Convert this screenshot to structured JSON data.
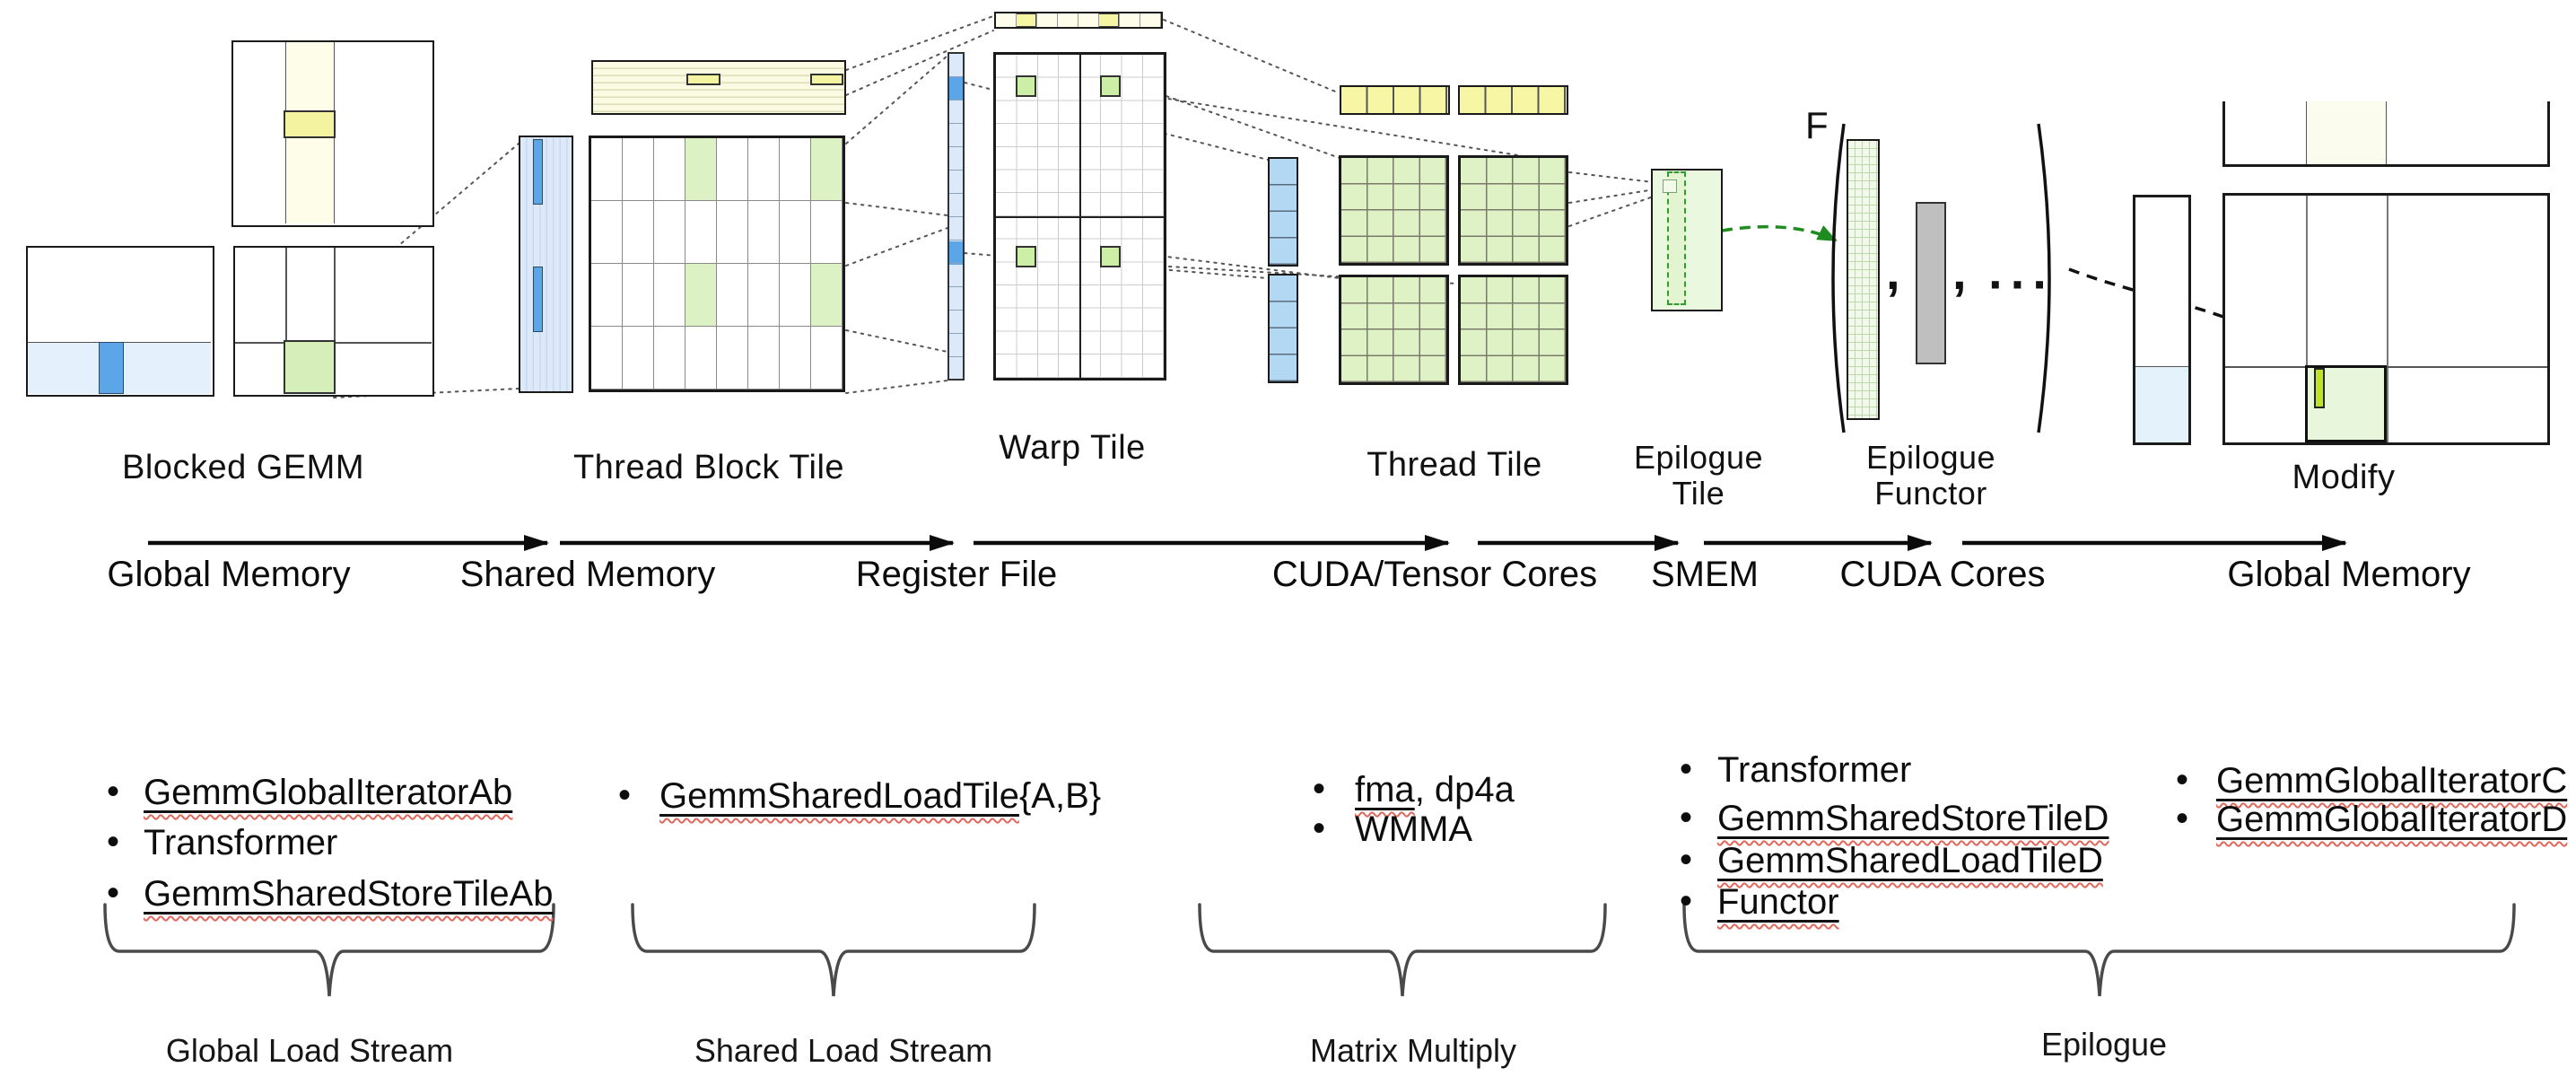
{
  "tiles": {
    "blocked_gemm": "Blocked GEMM",
    "thread_block_tile": "Thread Block Tile",
    "warp_tile": "Warp Tile",
    "thread_tile": "Thread Tile",
    "epilogue_tile": [
      "Epilogue",
      "Tile"
    ],
    "epilogue_functor": [
      "Epilogue",
      "Functor"
    ],
    "modify": "Modify"
  },
  "functor": {
    "symbol": "F",
    "comma": ",",
    "ellipsis": "···"
  },
  "pipeline": {
    "stages": [
      "Global Memory",
      "Shared Memory",
      "Register File",
      "CUDA/Tensor Cores",
      "SMEM",
      "CUDA Cores",
      "Global Memory"
    ]
  },
  "component_lists": [
    {
      "items": [
        [
          {
            "t": "GemmGlobalIteratorAb",
            "u": true
          }
        ],
        [
          {
            "t": "Transformer",
            "u": false
          }
        ],
        [
          {
            "t": "GemmSharedStoreTileAb",
            "u": true
          }
        ]
      ]
    },
    {
      "items": [
        [
          {
            "t": "GemmSharedLoadTile",
            "u": true
          },
          {
            "t": "{A,B}",
            "u": false
          }
        ]
      ]
    },
    {
      "items": [
        [
          {
            "t": "fma",
            "u": true
          },
          {
            "t": ", dp4a",
            "u": false
          }
        ],
        [
          {
            "t": "WMMA",
            "u": false
          }
        ]
      ]
    },
    {
      "items": [
        [
          {
            "t": "Transformer",
            "u": false
          }
        ],
        [
          {
            "t": "GemmSharedStoreTileD",
            "u": true
          }
        ],
        [
          {
            "t": "GemmSharedLoadTileD",
            "u": true
          }
        ],
        [
          {
            "t": "Functor",
            "u": true
          }
        ]
      ]
    },
    {
      "items": [
        [
          {
            "t": "GemmGlobalIteratorC",
            "u": true
          }
        ],
        [
          {
            "t": "GemmGlobalIteratorD",
            "u": true
          }
        ]
      ]
    }
  ],
  "phases": [
    "Global Load Stream",
    "Shared Load Stream",
    "Matrix Multiply",
    "Epilogue"
  ],
  "colors": {
    "yellow_highlight": "#F4F4A0",
    "light_yellow_band": "#FBFBE4",
    "blue_highlight": "#5CA6E7",
    "light_blue": "#DDE9F8",
    "register_blue": "#B3D8F3",
    "green_tile": "#DCF2C4",
    "thread_green": "#DFF2C6",
    "epilogue_green": "#E2F5D0",
    "chartreuse": "#BFE326",
    "functor_gray": "#BFBFBF"
  }
}
